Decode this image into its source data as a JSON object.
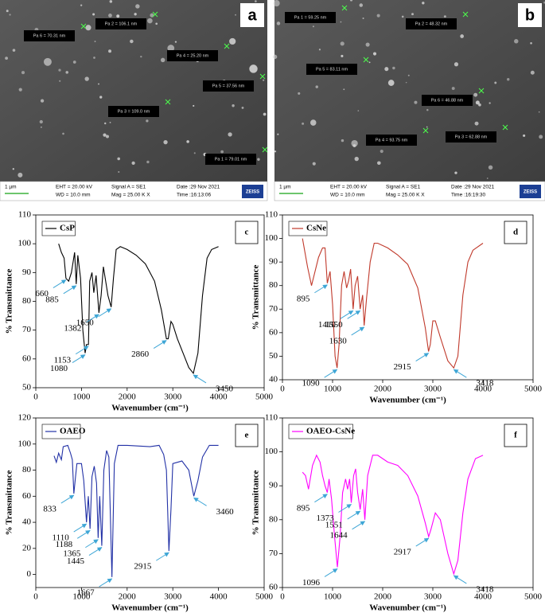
{
  "sem_panels": [
    {
      "panel_label": "a",
      "measurements": [
        "Pa 6 = 70.31 nm",
        "Pa 2 = 106.1 nm",
        "Pa 4 = 25.20 nm",
        "Pa 5 = 37.56 nm",
        "Pa 3 = 109.0 nm",
        "Pa 1 = 79.01 nm"
      ],
      "scale_bar": "1 µm",
      "eht": "EHT = 20.00 kV",
      "wd": "WD = 10.0 mm",
      "signal": "Signal A = SE1",
      "mag": "Mag = 25.00 K X",
      "date": "Date :29 Nov 2021",
      "time": "Time :16:13:06",
      "brand": "ZEISS"
    },
    {
      "panel_label": "b",
      "measurements": [
        "Pa 1 = 59.25 nm",
        "Pa 2 = 48.32 nm",
        "Pa 5 = 83.11 nm",
        "Pa 6 = 46.88 nm",
        "Pa 3 = 62.88 nm",
        "Pa 4 = 93.75 nm"
      ],
      "scale_bar": "1 µm",
      "eht": "EHT = 20.00 kV",
      "wd": "WD = 10.0 mm",
      "signal": "Signal A = SE1",
      "mag": "Mag =  25.00 K X",
      "date": "Date :29 Nov 2021",
      "time": "Time :16:19:30",
      "brand": "ZEISS"
    }
  ],
  "chart_data": [
    {
      "type": "line",
      "panel_label": "c",
      "xlabel": "Wavenumber (cm⁻¹)",
      "ylabel": "% Transmittance",
      "xlim": [
        0,
        5000
      ],
      "xticks": [
        0,
        1000,
        2000,
        3000,
        4000,
        5000
      ],
      "ylim": [
        50,
        110
      ],
      "yticks": [
        50,
        60,
        70,
        80,
        90,
        100,
        110
      ],
      "x": [
        500,
        560,
        620,
        660,
        720,
        780,
        850,
        885,
        920,
        980,
        1030,
        1080,
        1110,
        1153,
        1180,
        1230,
        1270,
        1320,
        1382,
        1430,
        1480,
        1530,
        1580,
        1650,
        1700,
        1760,
        1850,
        2000,
        2200,
        2400,
        2600,
        2750,
        2860,
        2900,
        2960,
        3000,
        3100,
        3250,
        3350,
        3450,
        3550,
        3650,
        3750,
        3850,
        4000
      ],
      "series": [
        {
          "name": "CsP",
          "color": "#000000",
          "values": [
            100,
            97,
            95,
            88,
            87,
            90,
            97,
            86,
            96,
            88,
            70,
            62,
            65,
            65,
            87,
            90,
            83,
            89,
            76,
            82,
            92,
            87,
            82,
            78,
            88,
            98,
            99,
            98,
            96,
            93,
            87,
            77,
            67,
            67,
            73,
            72,
            67,
            61,
            57,
            55,
            62,
            82,
            95,
            98,
            99
          ]
        }
      ],
      "peaks": [
        660,
        885,
        1080,
        1153,
        1382,
        1650,
        2860,
        3450
      ]
    },
    {
      "type": "line",
      "panel_label": "d",
      "xlabel": "Wavenumber (cm⁻¹)",
      "ylabel": "% Transmittance",
      "xlim": [
        0,
        5000
      ],
      "xticks": [
        0,
        1000,
        2000,
        3000,
        4000,
        5000
      ],
      "ylim": [
        40,
        110
      ],
      "yticks": [
        40,
        50,
        60,
        70,
        80,
        90,
        100,
        110
      ],
      "x": [
        400,
        500,
        580,
        650,
        720,
        800,
        850,
        895,
        950,
        1000,
        1050,
        1090,
        1130,
        1180,
        1230,
        1280,
        1320,
        1360,
        1410,
        1450,
        1500,
        1550,
        1600,
        1630,
        1680,
        1750,
        1830,
        1900,
        2100,
        2300,
        2500,
        2700,
        2850,
        2915,
        2950,
        3000,
        3050,
        3150,
        3300,
        3418,
        3500,
        3600,
        3700,
        3800,
        4000
      ],
      "series": [
        {
          "name": "CsNe",
          "color": "#c0392b",
          "values": [
            100,
            88,
            80,
            86,
            92,
            96,
            96,
            81,
            86,
            72,
            50,
            45,
            55,
            80,
            86,
            79,
            82,
            87,
            70,
            80,
            84,
            70,
            76,
            63,
            75,
            90,
            98,
            98,
            96,
            93,
            89,
            79,
            62,
            52,
            55,
            65,
            65,
            58,
            48,
            45,
            50,
            76,
            90,
            95,
            98
          ]
        }
      ],
      "peaks": [
        895,
        1090,
        1410,
        1550,
        1630,
        2915,
        3418
      ]
    },
    {
      "type": "line",
      "panel_label": "e",
      "xlabel": "Wavenumber (cm⁻¹)",
      "ylabel": "% Transmittance",
      "xlim": [
        0,
        5000
      ],
      "xticks": [
        0,
        1000,
        2000,
        3000,
        4000,
        5000
      ],
      "ylim": [
        -10,
        120
      ],
      "yticks": [
        0,
        20,
        40,
        60,
        80,
        100,
        120
      ],
      "x": [
        400,
        450,
        500,
        560,
        600,
        700,
        760,
        800,
        833,
        870,
        900,
        1000,
        1050,
        1110,
        1150,
        1188,
        1230,
        1280,
        1330,
        1365,
        1400,
        1445,
        1490,
        1550,
        1600,
        1667,
        1720,
        1800,
        2000,
        2500,
        2700,
        2800,
        2860,
        2915,
        2960,
        3000,
        3200,
        3350,
        3460,
        3550,
        3650,
        3800,
        4000
      ],
      "series": [
        {
          "name": "OAEO",
          "color": "#2231a6",
          "values": [
            91,
            86,
            93,
            88,
            98,
            99,
            93,
            88,
            62,
            75,
            85,
            85,
            72,
            40,
            60,
            35,
            75,
            83,
            70,
            28,
            60,
            22,
            80,
            95,
            90,
            -2,
            85,
            99,
            99,
            98,
            99,
            92,
            80,
            18,
            50,
            85,
            87,
            80,
            60,
            72,
            90,
            99,
            99
          ]
        }
      ],
      "peaks": [
        833,
        1110,
        1188,
        1365,
        1445,
        1667,
        2915,
        3460
      ]
    },
    {
      "type": "line",
      "panel_label": "f",
      "xlabel": "Wavenumber (cm⁻¹)",
      "ylabel": "% Transmittance",
      "xlim": [
        0,
        5000
      ],
      "xticks": [
        0,
        1000,
        2000,
        3000,
        4000,
        5000
      ],
      "ylim": [
        60,
        110
      ],
      "yticks": [
        60,
        70,
        80,
        90,
        100,
        110
      ],
      "x": [
        400,
        460,
        520,
        600,
        680,
        750,
        800,
        850,
        895,
        930,
        980,
        1040,
        1096,
        1150,
        1200,
        1260,
        1300,
        1340,
        1373,
        1420,
        1460,
        1500,
        1551,
        1600,
        1644,
        1700,
        1800,
        1900,
        2100,
        2300,
        2500,
        2700,
        2850,
        2917,
        2960,
        3050,
        3150,
        3300,
        3418,
        3500,
        3600,
        3700,
        3850,
        4000
      ],
      "series": [
        {
          "name": "OAEO-CsNe",
          "color": "#ff00ff",
          "values": [
            94,
            93,
            89,
            96,
            99,
            97,
            93,
            90,
            88,
            92,
            86,
            75,
            66,
            75,
            88,
            92,
            89,
            92,
            85,
            93,
            95,
            88,
            83,
            89,
            80,
            93,
            99,
            99,
            97,
            96,
            93,
            87,
            79,
            75,
            77,
            82,
            80,
            70,
            64,
            68,
            82,
            92,
            98,
            99
          ]
        }
      ],
      "peaks": [
        895,
        1096,
        1373,
        1551,
        1644,
        2917,
        3418
      ]
    }
  ]
}
